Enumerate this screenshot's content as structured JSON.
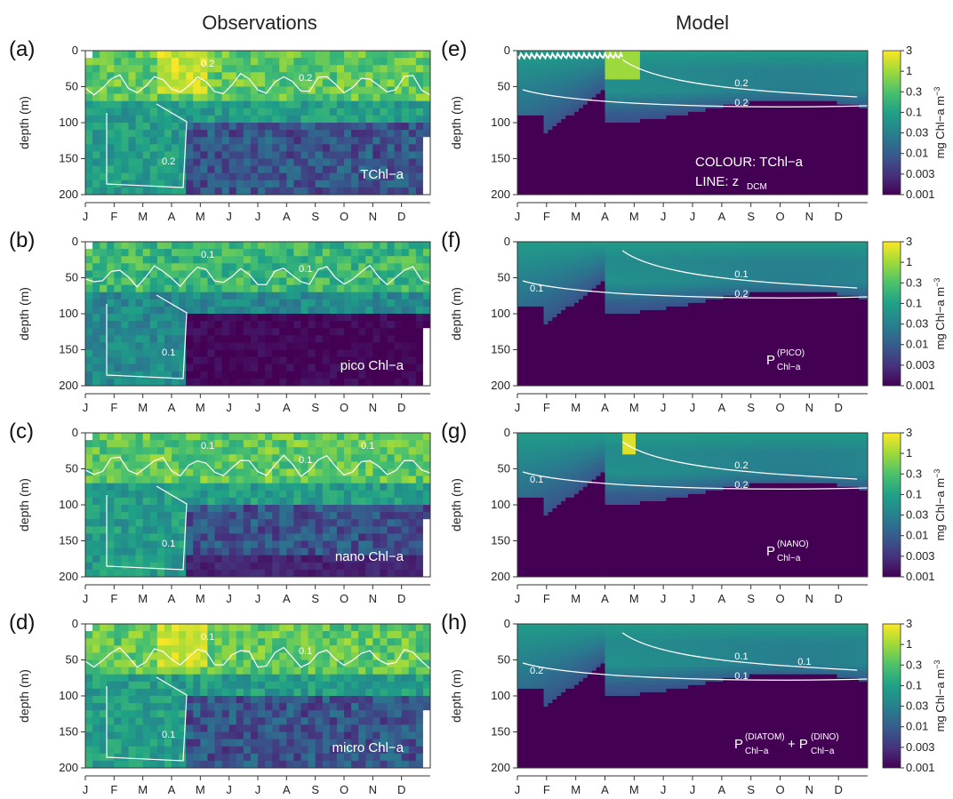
{
  "titles": {
    "left": "Observations",
    "right": "Model"
  },
  "colorbar": {
    "ticks": [
      "3",
      "1",
      "0.3",
      "0.1",
      "0.03",
      "0.01",
      "0.003",
      "0.001"
    ],
    "label": "mg Chl−a m",
    "label_sup": "−3",
    "colors": [
      "#440154",
      "#46327e",
      "#365c8d",
      "#277f8e",
      "#1fa187",
      "#4ac16d",
      "#a0da39",
      "#fde725"
    ]
  },
  "chart_data": [
    {
      "type": "heatmap",
      "panel": "(a)",
      "column": "Observations",
      "ylabel": "depth (m)",
      "yticks": [
        "0",
        "50",
        "100",
        "150",
        "200"
      ],
      "ylim": [
        200,
        0
      ],
      "xticks": [
        "J",
        "F",
        "M",
        "A",
        "M",
        "J",
        "J",
        "A",
        "S",
        "O",
        "N",
        "D"
      ],
      "contour_levels": [
        "0.2",
        "0.2",
        "0.2"
      ],
      "annotation": [
        "TChl−a"
      ]
    },
    {
      "type": "heatmap",
      "panel": "(b)",
      "column": "Observations",
      "ylabel": "depth (m)",
      "yticks": [
        "0",
        "50",
        "100",
        "150",
        "200"
      ],
      "ylim": [
        200,
        0
      ],
      "xticks": [
        "J",
        "F",
        "M",
        "A",
        "M",
        "J",
        "J",
        "A",
        "S",
        "O",
        "N",
        "D"
      ],
      "contour_levels": [
        "0.1",
        "0.1",
        "0.1"
      ],
      "annotation": [
        "pico Chl−a"
      ]
    },
    {
      "type": "heatmap",
      "panel": "(c)",
      "column": "Observations",
      "ylabel": "depth (m)",
      "yticks": [
        "0",
        "50",
        "100",
        "150",
        "200"
      ],
      "ylim": [
        200,
        0
      ],
      "xticks": [
        "J",
        "F",
        "M",
        "A",
        "M",
        "J",
        "J",
        "A",
        "S",
        "O",
        "N",
        "D"
      ],
      "contour_levels": [
        "0.1",
        "0.1",
        "0.1",
        "0.1"
      ],
      "annotation": [
        "nano Chl−a"
      ]
    },
    {
      "type": "heatmap",
      "panel": "(d)",
      "column": "Observations",
      "ylabel": "depth (m)",
      "yticks": [
        "0",
        "50",
        "100",
        "150",
        "200"
      ],
      "ylim": [
        200,
        0
      ],
      "xticks": [
        "J",
        "F",
        "M",
        "A",
        "M",
        "J",
        "J",
        "A",
        "S",
        "O",
        "N",
        "D"
      ],
      "contour_levels": [
        "0.1",
        "0.1",
        "0.1"
      ],
      "annotation": [
        "micro Chl−a"
      ]
    },
    {
      "type": "heatmap",
      "panel": "(e)",
      "column": "Model",
      "ylabel": "depth (m)",
      "yticks": [
        "0",
        "50",
        "100",
        "150",
        "200"
      ],
      "ylim": [
        200,
        0
      ],
      "xticks": [
        "J",
        "F",
        "M",
        "A",
        "M",
        "J",
        "J",
        "A",
        "S",
        "O",
        "N",
        "D"
      ],
      "contour_levels": [
        "0.2",
        "0.2"
      ],
      "annotation": [
        "COLOUR: TChl−a",
        "LINE: z",
        "DCM"
      ]
    },
    {
      "type": "heatmap",
      "panel": "(f)",
      "column": "Model",
      "ylabel": "depth (m)",
      "yticks": [
        "0",
        "50",
        "100",
        "150",
        "200"
      ],
      "ylim": [
        200,
        0
      ],
      "xticks": [
        "J",
        "F",
        "M",
        "A",
        "M",
        "J",
        "J",
        "A",
        "S",
        "O",
        "N",
        "D"
      ],
      "contour_levels": [
        "0.1",
        "0.2",
        "0.1"
      ],
      "annotation": [
        "P",
        "(PICO)",
        "Chl−a"
      ]
    },
    {
      "type": "heatmap",
      "panel": "(g)",
      "column": "Model",
      "ylabel": "depth (m)",
      "yticks": [
        "0",
        "50",
        "100",
        "150",
        "200"
      ],
      "ylim": [
        200,
        0
      ],
      "xticks": [
        "J",
        "F",
        "M",
        "A",
        "M",
        "J",
        "J",
        "A",
        "S",
        "O",
        "N",
        "D"
      ],
      "contour_levels": [
        "0.2",
        "0.2",
        "0.1"
      ],
      "annotation": [
        "P",
        "(NANO)",
        "Chl−a"
      ]
    },
    {
      "type": "heatmap",
      "panel": "(h)",
      "column": "Model",
      "ylabel": "depth (m)",
      "yticks": [
        "0",
        "50",
        "100",
        "150",
        "200"
      ],
      "ylim": [
        200,
        0
      ],
      "xticks": [
        "J",
        "F",
        "M",
        "A",
        "M",
        "J",
        "J",
        "A",
        "S",
        "O",
        "N",
        "D"
      ],
      "contour_levels": [
        "0.1",
        "0.1",
        "0.2",
        "0.1"
      ],
      "annotation": [
        "P",
        "(DIATOM)",
        "Chl−a",
        "+ P",
        "(DINO)",
        "Chl−a"
      ]
    }
  ]
}
